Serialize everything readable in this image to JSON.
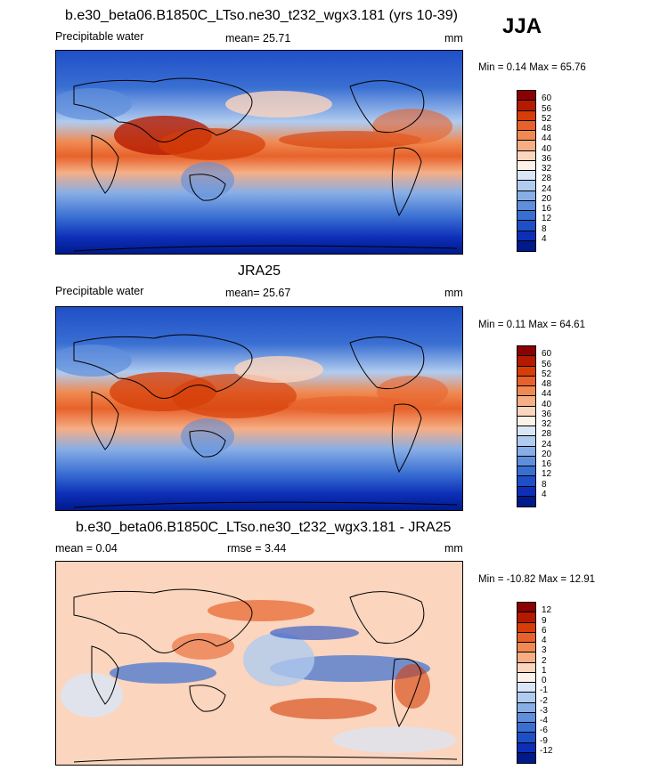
{
  "season": "JJA",
  "panels": [
    {
      "title": "b.e30_beta06.B1850C_LTso.ne30_t232_wgx3.181 (yrs 10-39)",
      "left_label": "Precipitable water",
      "center_label": "mean=  25.71",
      "units": "mm",
      "minmax": "Min =  0.14 Max =  65.76",
      "colorbar_levels": [
        "60",
        "56",
        "52",
        "48",
        "44",
        "40",
        "36",
        "32",
        "28",
        "24",
        "20",
        "16",
        "12",
        "8",
        "4"
      ],
      "colors": [
        "#8b0000",
        "#b51a00",
        "#d63d07",
        "#e7622b",
        "#f08a52",
        "#f6ae85",
        "#fbd5be",
        "#fdf1e8",
        "#d9e6f7",
        "#b0cbef",
        "#88aee6",
        "#5f8fdc",
        "#3a6fd2",
        "#1f4fc7",
        "#0d2fb8",
        "#001a8c"
      ]
    },
    {
      "title": "JRA25",
      "left_label": "Precipitable water",
      "center_label": "mean=  25.67",
      "units": "mm",
      "minmax": "Min =  0.11 Max =  64.61",
      "colorbar_levels": [
        "60",
        "56",
        "52",
        "48",
        "44",
        "40",
        "36",
        "32",
        "28",
        "24",
        "20",
        "16",
        "12",
        "8",
        "4"
      ],
      "colors": [
        "#8b0000",
        "#b51a00",
        "#d63d07",
        "#e7622b",
        "#f08a52",
        "#f6ae85",
        "#fbd5be",
        "#fdf1e8",
        "#d9e6f7",
        "#b0cbef",
        "#88aee6",
        "#5f8fdc",
        "#3a6fd2",
        "#1f4fc7",
        "#0d2fb8",
        "#001a8c"
      ]
    },
    {
      "title": "b.e30_beta06.B1850C_LTso.ne30_t232_wgx3.181 - JRA25",
      "left_label": "mean =   0.04",
      "center_label": "rmse =   3.44",
      "units": "mm",
      "minmax": "Min = -10.82 Max =  12.91",
      "colorbar_levels": [
        "12",
        "9",
        "6",
        "4",
        "3",
        "2",
        "1",
        "0",
        "-1",
        "-2",
        "-3",
        "-4",
        "-6",
        "-9",
        "-12"
      ],
      "colors": [
        "#8b0000",
        "#b51a00",
        "#d63d07",
        "#e7622b",
        "#f08a52",
        "#f6ae85",
        "#fbd5be",
        "#fdf1e8",
        "#d9e6f7",
        "#b0cbef",
        "#88aee6",
        "#5f8fdc",
        "#3a6fd2",
        "#1f4fc7",
        "#0d2fb8",
        "#001a8c"
      ]
    }
  ]
}
